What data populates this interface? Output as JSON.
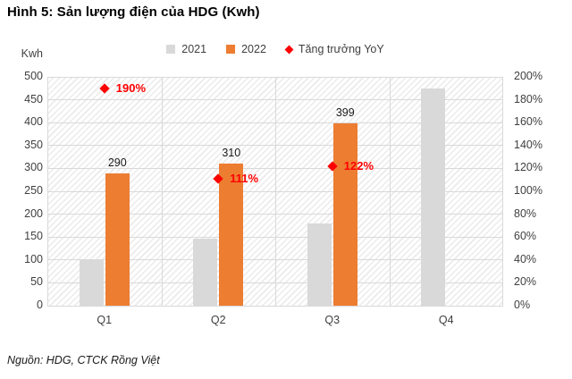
{
  "title": "Hình 5: Sản lượng điện của HDG (Kwh)",
  "source": "Nguồn: HDG, CTCK Rồng Việt",
  "colors": {
    "bar_2021": "#D9D9D9",
    "bar_2022": "#ED7D31",
    "yoy_marker": "#FF0000",
    "gridline": "#D9D9D9",
    "axis_text": "#3F3F3F"
  },
  "legend": {
    "items": [
      {
        "label": "2021",
        "marker": "square-gray"
      },
      {
        "label": "2022",
        "marker": "square-orange"
      },
      {
        "label": "Tăng trưởng YoY",
        "marker": "diamond-red"
      }
    ]
  },
  "chart_data": {
    "type": "bar",
    "title": "Hình 5: Sản lượng điện của HDG (Kwh)",
    "categories": [
      "Q1",
      "Q2",
      "Q3",
      "Q4"
    ],
    "series": [
      {
        "name": "2021",
        "type": "bar",
        "axis": "left",
        "color": "#D9D9D9",
        "values": [
          100,
          147,
          180,
          475
        ],
        "labels": [
          null,
          null,
          null,
          null
        ]
      },
      {
        "name": "2022",
        "type": "bar",
        "axis": "left",
        "color": "#ED7D31",
        "values": [
          290,
          310,
          399,
          null
        ],
        "labels": [
          "290",
          "310",
          "399",
          null
        ]
      },
      {
        "name": "Tăng trưởng YoY",
        "type": "scatter",
        "marker": "diamond",
        "axis": "right",
        "color": "#FF0000",
        "values": [
          190,
          111,
          122,
          null
        ],
        "labels": [
          "190%",
          "111%",
          "122%",
          null
        ]
      }
    ],
    "y_left": {
      "label": "Kwh",
      "min": 0,
      "max": 500,
      "step": 50,
      "ticks": [
        "500",
        "450",
        "400",
        "350",
        "300",
        "250",
        "200",
        "150",
        "100",
        "50",
        "0"
      ]
    },
    "y_right": {
      "min": 0,
      "max": 200,
      "step": 20,
      "unit": "%",
      "ticks": [
        "200%",
        "180%",
        "160%",
        "140%",
        "120%",
        "100%",
        "80%",
        "60%",
        "40%",
        "20%",
        "0%"
      ]
    },
    "grid": true,
    "plot_background": "diagonal-hatch",
    "legend_position": "top"
  }
}
